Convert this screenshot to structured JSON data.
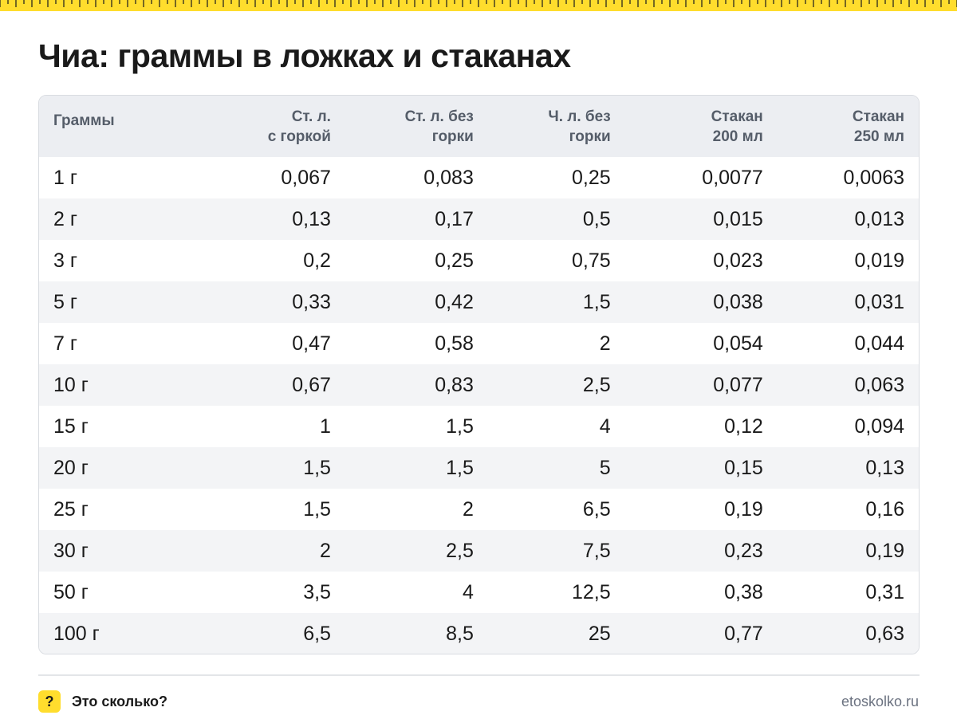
{
  "title": "Чиа: граммы в ложках и стаканах",
  "table": {
    "headers": [
      {
        "lines": [
          "Граммы"
        ]
      },
      {
        "lines": [
          "Ст. л.",
          "с горкой"
        ]
      },
      {
        "lines": [
          "Ст. л. без",
          "горки"
        ]
      },
      {
        "lines": [
          "Ч. л. без",
          "горки"
        ]
      },
      {
        "lines": [
          "Стакан",
          "200 мл"
        ]
      },
      {
        "lines": [
          "Стакан",
          "250 мл"
        ]
      }
    ],
    "rows": [
      [
        "1 г",
        "0,067",
        "0,083",
        "0,25",
        "0,0077",
        "0,0063"
      ],
      [
        "2 г",
        "0,13",
        "0,17",
        "0,5",
        "0,015",
        "0,013"
      ],
      [
        "3 г",
        "0,2",
        "0,25",
        "0,75",
        "0,023",
        "0,019"
      ],
      [
        "5 г",
        "0,33",
        "0,42",
        "1,5",
        "0,038",
        "0,031"
      ],
      [
        "7 г",
        "0,47",
        "0,58",
        "2",
        "0,054",
        "0,044"
      ],
      [
        "10 г",
        "0,67",
        "0,83",
        "2,5",
        "0,077",
        "0,063"
      ],
      [
        "15 г",
        "1",
        "1,5",
        "4",
        "0,12",
        "0,094"
      ],
      [
        "20 г",
        "1,5",
        "1,5",
        "5",
        "0,15",
        "0,13"
      ],
      [
        "25 г",
        "1,5",
        "2",
        "6,5",
        "0,19",
        "0,16"
      ],
      [
        "30 г",
        "2",
        "2,5",
        "7,5",
        "0,23",
        "0,19"
      ],
      [
        "50 г",
        "3,5",
        "4",
        "12,5",
        "0,38",
        "0,31"
      ],
      [
        "100 г",
        "6,5",
        "8,5",
        "25",
        "0,77",
        "0,63"
      ]
    ]
  },
  "footer": {
    "icon_glyph": "?",
    "brand": "Это сколько?",
    "site": "etoskolko.ru"
  },
  "colors": {
    "accent_yellow": "#ffdd2d",
    "header_bg": "#eceef2",
    "zebra_bg": "#f3f4f6"
  }
}
